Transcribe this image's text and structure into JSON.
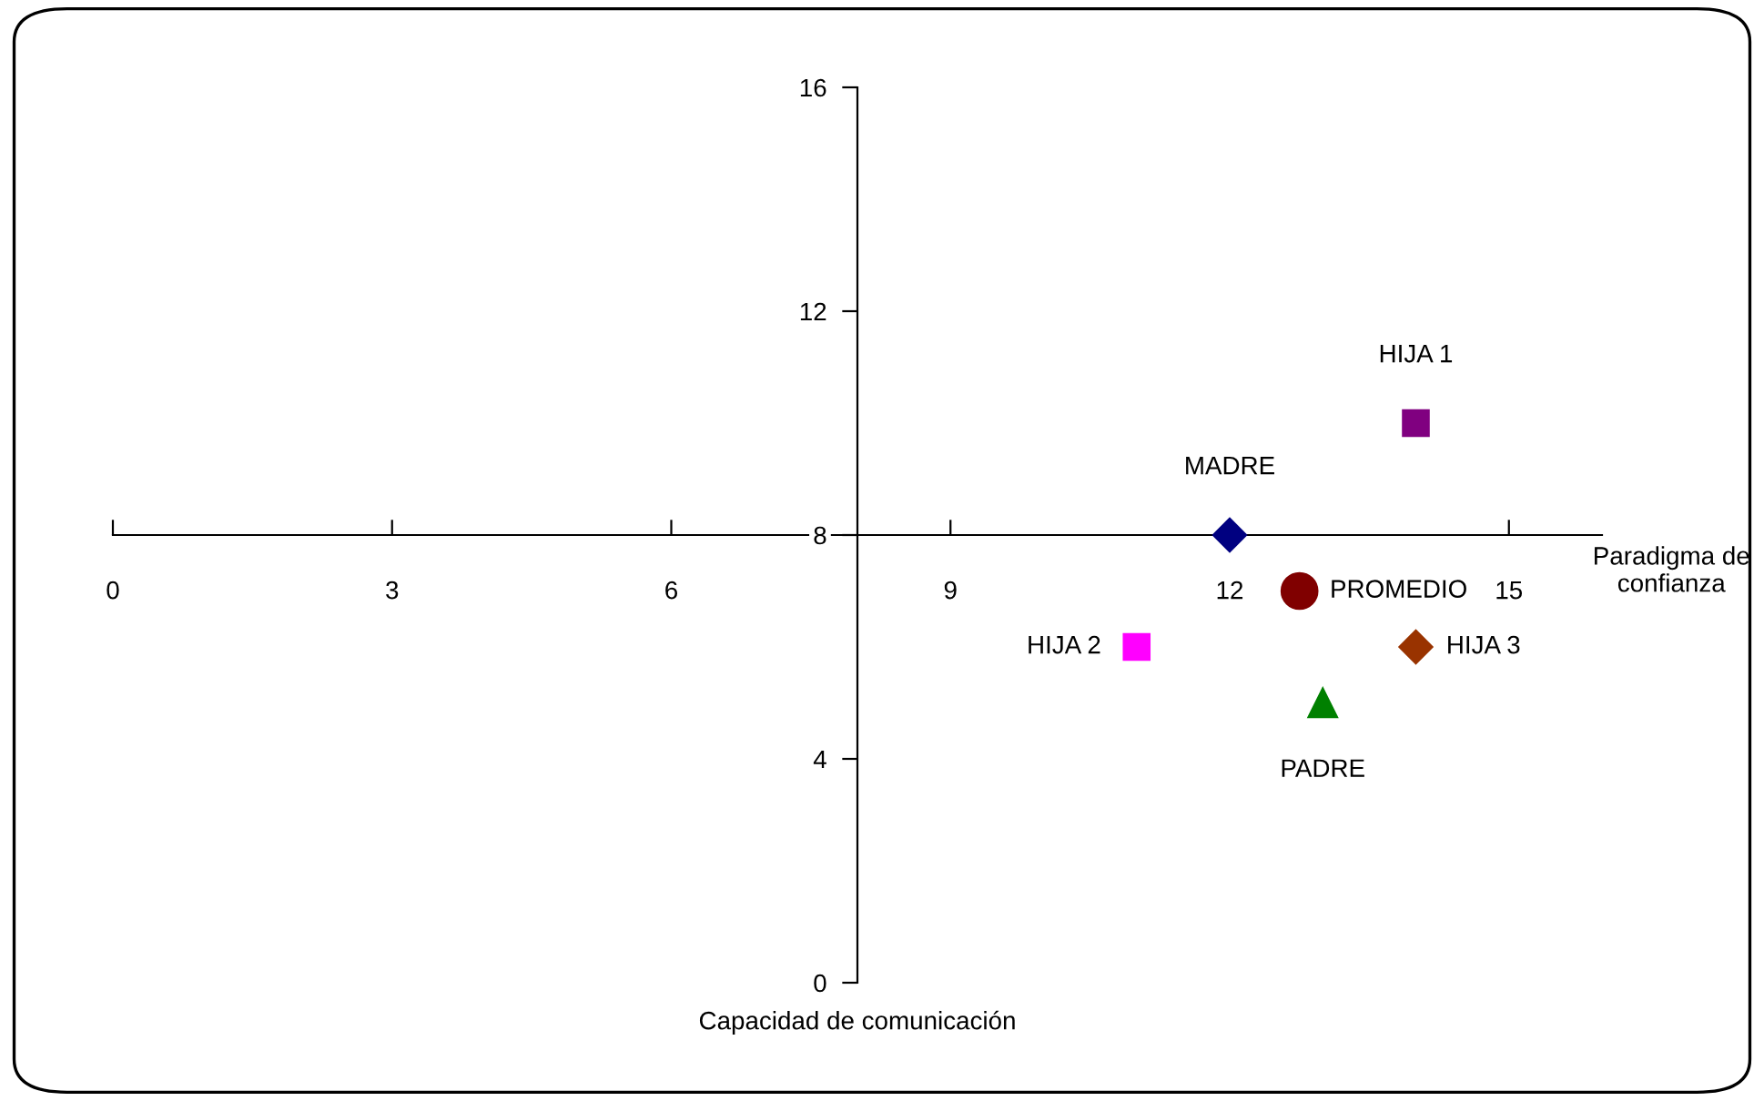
{
  "chart_data": {
    "type": "scatter",
    "xlabel": "Capacidad de comunicación",
    "ylabel": "Paradigma de\nconfianza",
    "xlim": [
      0,
      16
    ],
    "xticks": [
      0,
      3,
      6,
      9,
      12,
      15
    ],
    "ylim": [
      0,
      16
    ],
    "yticks": [
      0,
      4,
      8,
      12,
      16
    ],
    "grid": false,
    "legend": false,
    "series": [
      {
        "name": "MADRE",
        "color": "#000080",
        "marker": "diamond",
        "x": [
          12
        ],
        "values": [
          8
        ]
      },
      {
        "name": "HIJA 1",
        "color": "#800080",
        "marker": "square",
        "x": [
          14
        ],
        "values": [
          10
        ]
      },
      {
        "name": "HIJA 2",
        "color": "#ff00ff",
        "marker": "square",
        "x": [
          11
        ],
        "values": [
          6
        ]
      },
      {
        "name": "PROMEDIO",
        "color": "#800000",
        "marker": "circle",
        "x": [
          12.75
        ],
        "values": [
          7
        ]
      },
      {
        "name": "HIJA 3",
        "color": "#993300",
        "marker": "diamond",
        "x": [
          14
        ],
        "values": [
          6
        ]
      },
      {
        "name": "PADRE",
        "color": "#008000",
        "marker": "triangle",
        "x": [
          13
        ],
        "values": [
          5
        ]
      }
    ]
  }
}
